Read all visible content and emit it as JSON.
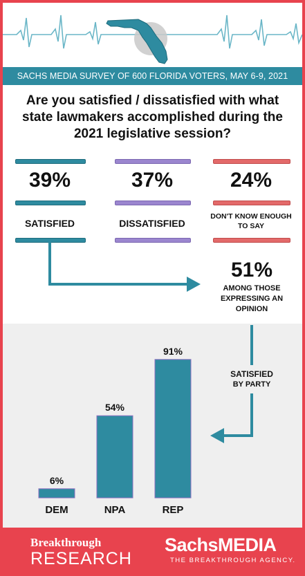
{
  "banner": {
    "text": "SACHS MEDIA SURVEY OF 600 FLORIDA VOTERS, MAY 6-9, 2021"
  },
  "question": "Are you satisfied / dissatisfied with what state lawmakers accomplished during the 2021 legislative session?",
  "results": [
    {
      "pct": "39%",
      "label": "SATISFIED"
    },
    {
      "pct": "37%",
      "label": "DISSATISFIED"
    },
    {
      "pct": "24%",
      "label": "DON'T KNOW ENOUGH TO SAY"
    }
  ],
  "opinion": {
    "pct": "51%",
    "text": "AMONG THOSE EXPRESSING AN OPINION"
  },
  "party_caption": {
    "line1": "SATISFIED",
    "line2": "BY PARTY"
  },
  "chart_data": {
    "type": "bar",
    "title": "",
    "xlabel": "",
    "ylabel": "",
    "categories": [
      "DEM",
      "NPA",
      "REP"
    ],
    "values": [
      6,
      54,
      91
    ],
    "value_labels": [
      "6%",
      "54%",
      "91%"
    ],
    "ylim": [
      0,
      100
    ],
    "grid": false,
    "bar_color": "#2e8ba0",
    "bar_edge": "#8e6fc1"
  },
  "colors": {
    "teal": "#2e8ba0",
    "purple": "#9b86cf",
    "red": "#e36a6a",
    "frame": "#e8434e"
  },
  "footer": {
    "left_line1": "Breakthrough",
    "left_line2": "RESEARCH",
    "right_line1": "SachsMEDIA",
    "right_line2": "THE BREAKTHROUGH AGENCY."
  }
}
